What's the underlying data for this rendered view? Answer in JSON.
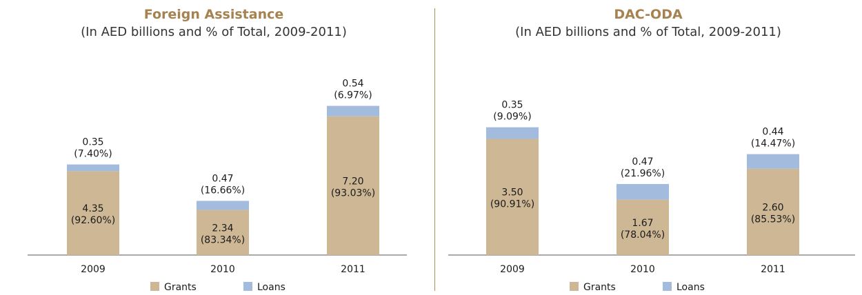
{
  "colors": {
    "grants": "#cdb795",
    "loans": "#a3bcdd",
    "title": "#a5824f",
    "divider": "#b08d57",
    "axis": "#555555"
  },
  "legend": {
    "grants": "Grants",
    "loans": "Loans"
  },
  "chart_data": [
    {
      "type": "bar",
      "stacked": true,
      "title": "Foreign Assistance",
      "subtitle": "(In AED billions and % of Total, 2009-2011)",
      "categories": [
        "2009",
        "2010",
        "2011"
      ],
      "series": [
        {
          "name": "Grants",
          "values": [
            4.35,
            2.34,
            7.2
          ],
          "labels": [
            "4.35",
            "2.34",
            "7.20"
          ],
          "pct_labels": [
            "(92.60%)",
            "(83.34%)",
            "(93.03%)"
          ]
        },
        {
          "name": "Loans",
          "values": [
            0.35,
            0.47,
            0.54
          ],
          "labels": [
            "0.35",
            "0.47",
            "0.54"
          ],
          "pct_labels": [
            "(7.40%)",
            "(16.66%)",
            "(6.97%)"
          ]
        }
      ],
      "ylim": [
        0,
        9.3
      ],
      "grid": false
    },
    {
      "type": "bar",
      "stacked": true,
      "title": "DAC-ODA",
      "subtitle": "(In AED billions and % of Total, 2009-2011)",
      "categories": [
        "2009",
        "2010",
        "2011"
      ],
      "series": [
        {
          "name": "Grants",
          "values": [
            3.5,
            1.67,
            2.6
          ],
          "labels": [
            "3.50",
            "1.67",
            "2.60"
          ],
          "pct_labels": [
            "(90.91%)",
            "(78.04%)",
            "(85.53%)"
          ]
        },
        {
          "name": "Loans",
          "values": [
            0.35,
            0.47,
            0.44
          ],
          "labels": [
            "0.35",
            "0.47",
            "0.44"
          ],
          "pct_labels": [
            "(9.09%)",
            "(21.96%)",
            "(14.47%)"
          ]
        }
      ],
      "ylim": [
        0,
        5.4
      ],
      "grid": false
    }
  ]
}
